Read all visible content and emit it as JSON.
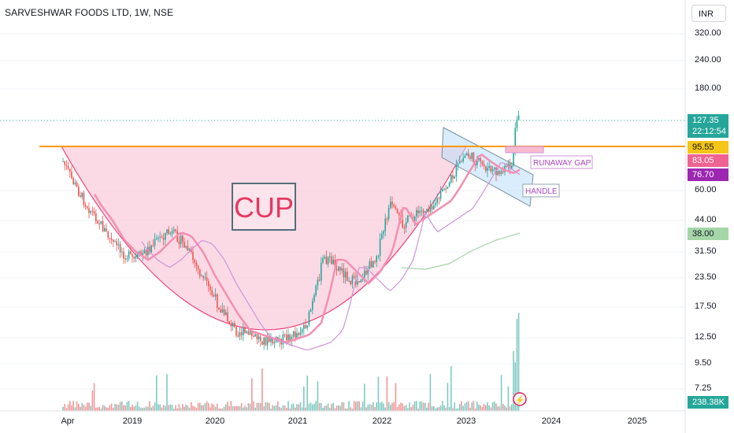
{
  "header": {
    "title": "SARVESHWAR FOODS LTD, 1W, NSE",
    "currency": "INR"
  },
  "chart_data": {
    "type": "candlestick",
    "symbol": "SARVESHWAR FOODS LTD",
    "interval": "1W",
    "exchange": "NSE",
    "y_scale": "log",
    "y_ticks": [
      "320.00",
      "240.00",
      "180.00",
      "60.00",
      "44.00",
      "31.50",
      "23.50",
      "17.50",
      "12.50",
      "9.50",
      "7.25"
    ],
    "x_ticks": [
      "Apr",
      "2019",
      "2020",
      "2021",
      "2022",
      "2023",
      "2024",
      "2025"
    ],
    "last_price": "127.35",
    "countdown": "22:12:54",
    "price_labels": [
      {
        "value": "95.55",
        "color": "#f5c518"
      },
      {
        "value": "83.05",
        "color": "#f06292"
      },
      {
        "value": "76.70",
        "color": "#9c27b0"
      },
      {
        "value": "38.00",
        "color": "#a5d6a7"
      }
    ],
    "volume_label": "238.38K",
    "annotations": [
      "CUP",
      "RUNAWAY GAP",
      "HANDLE"
    ],
    "resistance_level": 95.55,
    "colors": {
      "up": "#26a69a",
      "down": "#ef5350",
      "cup_fill": "#f8bbd0",
      "resistance": "#ff9800",
      "ema_fast": "#f48fb1",
      "ema_mid": "#ce93d8",
      "ema_slow": "#a5d6a7",
      "channel": "#bbdefb"
    }
  }
}
